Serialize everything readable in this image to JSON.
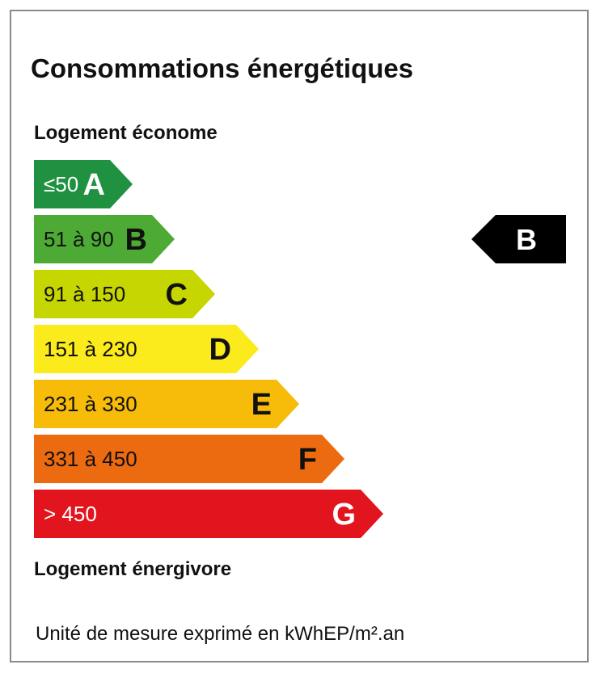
{
  "title": "Consommations énergétiques",
  "top_label": "Logement économe",
  "bottom_label": "Logement énergivore",
  "unit_note": "Unité de mesure exprimé en kWhEP/m².an",
  "chart_data": {
    "type": "bar",
    "categories": [
      "A",
      "B",
      "C",
      "D",
      "E",
      "F",
      "G"
    ],
    "ranges": [
      "≤50",
      "51 à 90",
      "91 à 150",
      "151 à 230",
      "231 à 330",
      "331 à 450",
      "> 450"
    ],
    "colors": [
      "#1f9140",
      "#4daa35",
      "#c6d600",
      "#fbea1c",
      "#f7bb0a",
      "#ec6b11",
      "#e2151f"
    ],
    "selected": "B"
  }
}
